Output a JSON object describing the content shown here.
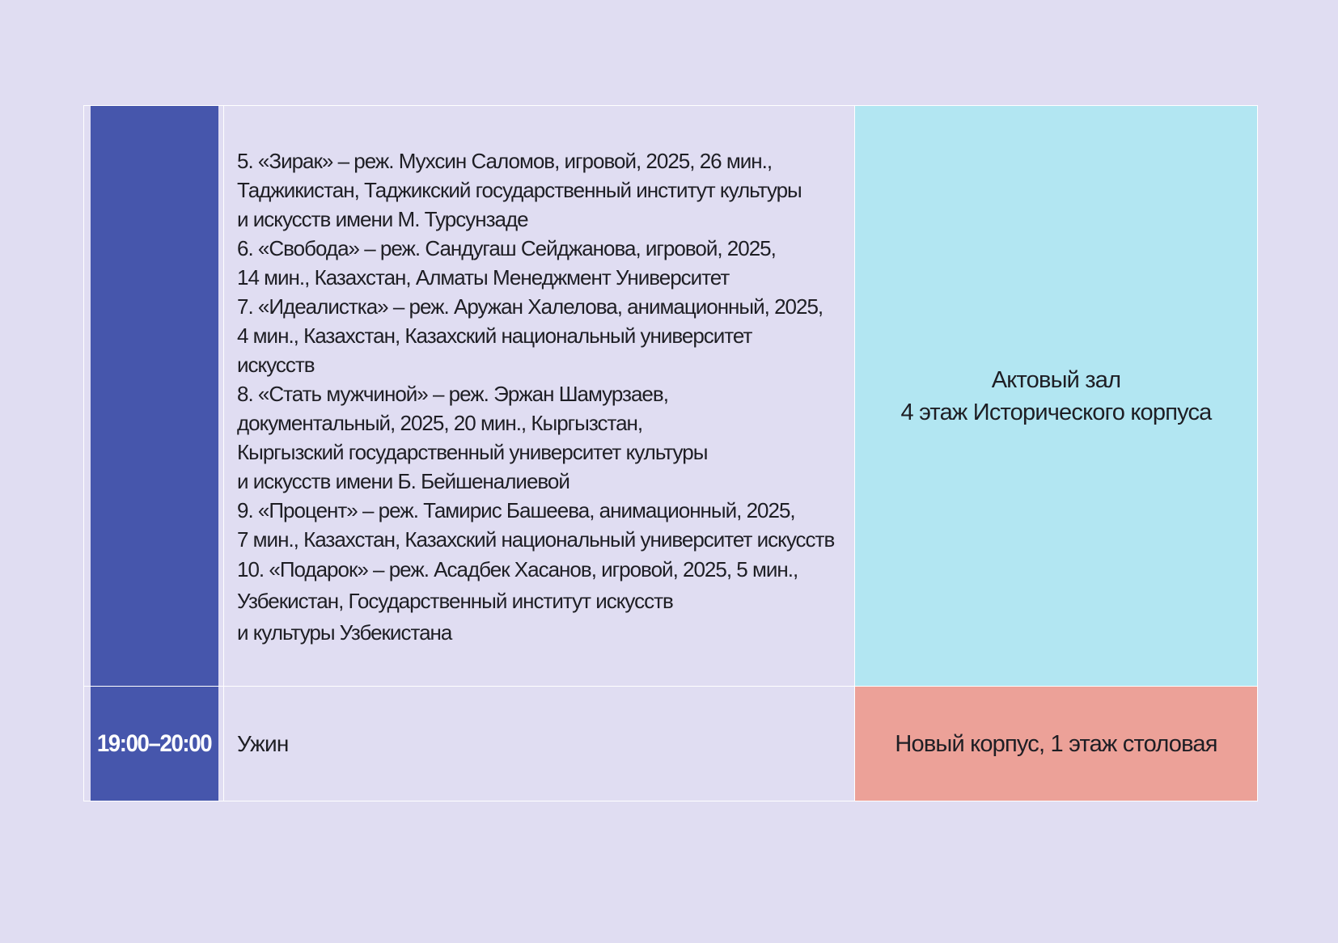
{
  "schedule": {
    "rows": [
      {
        "time": "",
        "films": [
          "5. «Зирак» – реж. Мухсин Саломов, игровой, 2025, 26 мин.,\nТаджикистан, Таджикский государственный институт культуры\nи искусств имени М. Турсунзаде",
          "6. «Свобода» – реж. Сандугаш Сейджанова, игровой, 2025,\n14 мин., Казахстан, Алматы Менеджмент Университет",
          "7. «Идеалистка» – реж. Аружан Халелова, анимационный, 2025,\n4 мин., Казахстан, Казахский национальный университет\nискусств",
          "8. «Стать мужчиной» – реж. Эржан Шамурзаев,\nдокументальный, 2025, 20 мин., Кыргызстан,\nКыргызский государственный университет культуры\nи искусств имени Б. Бейшеналиевой",
          "9. «Процент» – реж. Тамирис Башеева, анимационный, 2025,\n7 мин., Казахстан, Казахский национальный университет искусств",
          "10. «Подарок» – реж. Асадбек Хасанов, игровой, 2025, 5 мин.,\nУзбекистан, Государственный институт искусств\nи культуры Узбекистана"
        ],
        "place_line1": "Актовый зал",
        "place_line2": "4 этаж Исторического корпуса"
      },
      {
        "time": "19:00–20:00",
        "event": "Ужин",
        "place": "Новый корпус, 1 этаж столовая"
      }
    ]
  },
  "colors": {
    "page_background": "#e0ddf2",
    "time_column": "#4656ac",
    "hall_place": "#b2e6f2",
    "dining_place": "#eca198"
  }
}
